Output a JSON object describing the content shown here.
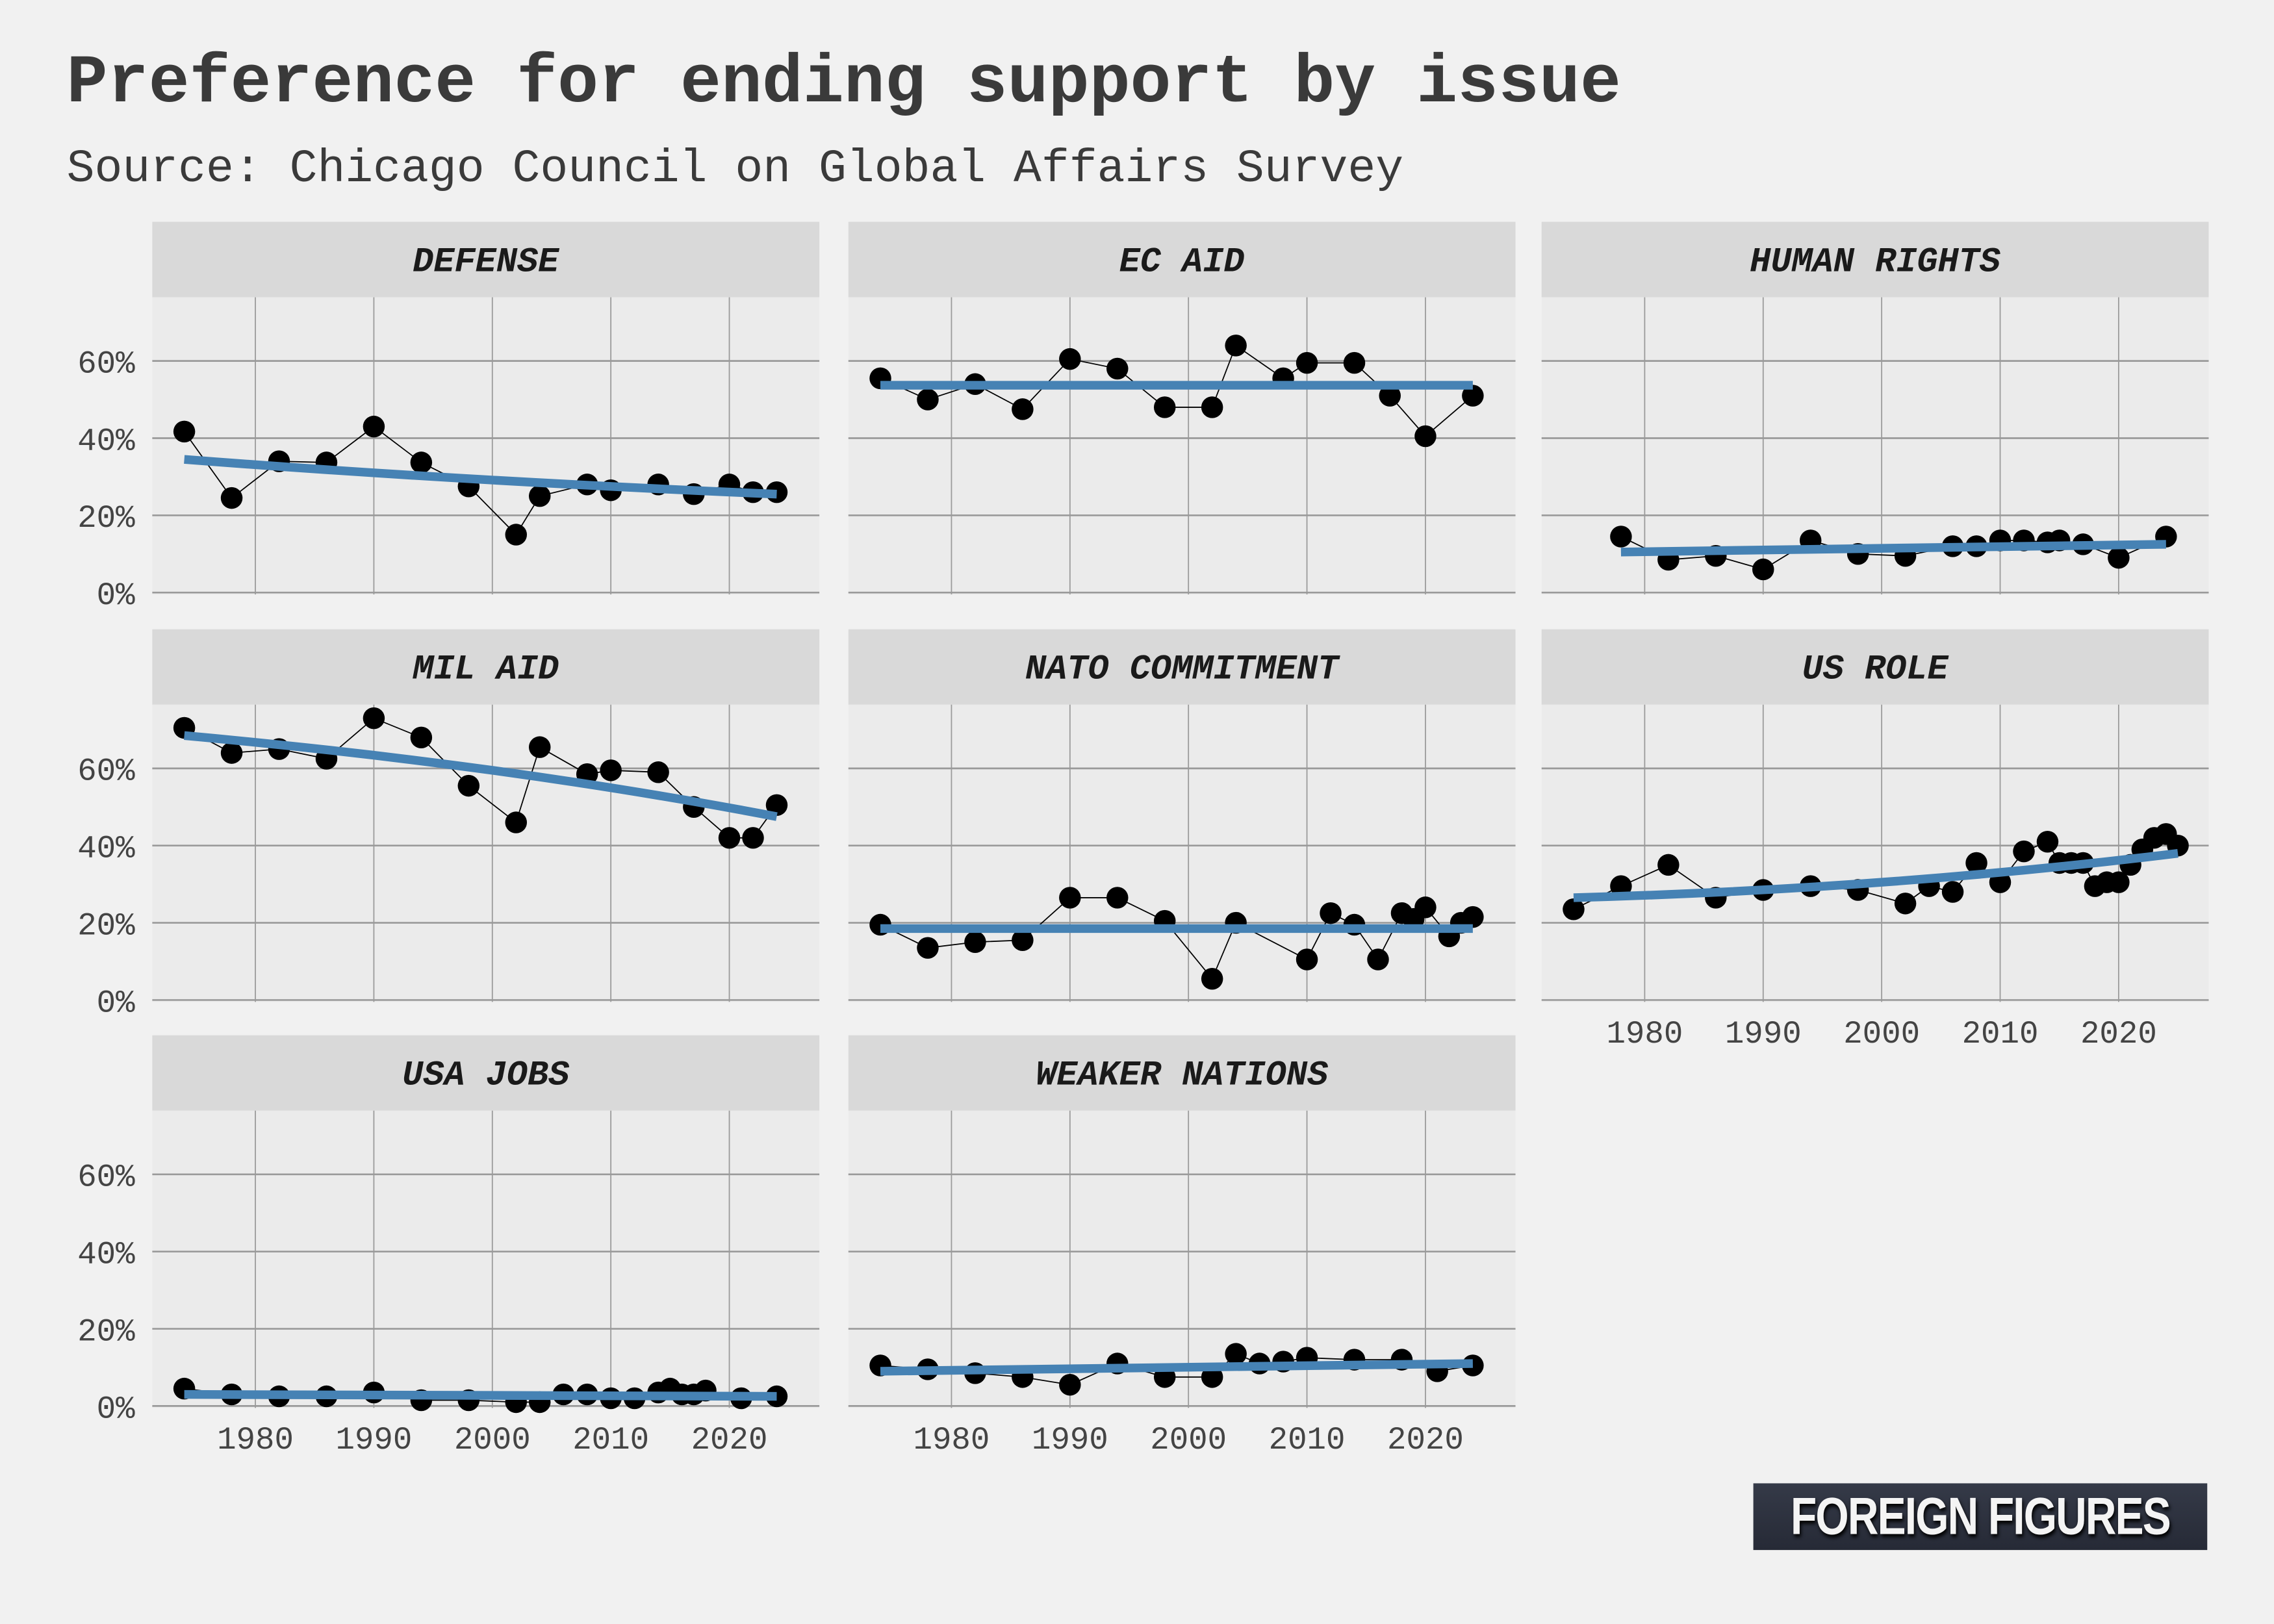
{
  "title": "Preference for ending support by issue",
  "subtitle": "Source: Chicago Council on Global Affairs Survey",
  "logo_text": "FOREIGN FIGURES",
  "colors": {
    "trend": "#4682b4",
    "points": "#000000",
    "panel_bg": "#ebebeb",
    "strip_bg": "#d9d9d9",
    "grid": "#9a9a9a"
  },
  "chart_data": {
    "type": "scatter",
    "facets": true,
    "xlim": [
      1971.3,
      2027.6
    ],
    "ylim": [
      -0.5,
      76.5
    ],
    "xticks": [
      1980,
      1990,
      2000,
      2010,
      2020
    ],
    "xtick_labels": [
      "1980",
      "1990",
      "2000",
      "2010",
      "2020"
    ],
    "yticks": [
      0,
      20,
      40,
      60
    ],
    "ytick_labels": [
      "0%",
      "20%",
      "40%",
      "60%"
    ],
    "grid": true,
    "panels": [
      {
        "name": "DEFENSE",
        "x": [
          1974,
          1978,
          1982,
          1986,
          1990,
          1994,
          1998,
          2002,
          2004,
          2008,
          2010,
          2014,
          2017,
          2020,
          2022,
          2024
        ],
        "y": [
          41.7,
          24.5,
          34,
          33.7,
          43,
          33.7,
          27.5,
          15,
          25,
          28,
          26.5,
          28,
          25.5,
          28,
          26,
          26
        ],
        "trend": [
          [
            1974,
            34.5
          ],
          [
            1998,
            29.5
          ],
          [
            2024,
            25.5
          ]
        ]
      },
      {
        "name": "EC AID",
        "x": [
          1974,
          1978,
          1982,
          1986,
          1990,
          1994,
          1998,
          2002,
          2004,
          2008,
          2010,
          2014,
          2017,
          2020,
          2024
        ],
        "y": [
          55.5,
          50,
          54,
          47.5,
          60.5,
          58,
          48,
          48,
          64,
          55.5,
          59.5,
          59.5,
          51,
          40.5,
          51
        ],
        "trend": [
          [
            1974,
            53.7
          ],
          [
            2024,
            53.7
          ]
        ]
      },
      {
        "name": "HUMAN RIGHTS",
        "x": [
          1978,
          1982,
          1986,
          1990,
          1994,
          1998,
          2002,
          2006,
          2008,
          2010,
          2012,
          2014,
          2015,
          2017,
          2020,
          2024
        ],
        "y": [
          14.5,
          8.5,
          9.5,
          6,
          13.5,
          10,
          9.5,
          12,
          12,
          13.5,
          13.5,
          13,
          13.5,
          12.5,
          9,
          14.5
        ],
        "trend": [
          [
            1978,
            10.5
          ],
          [
            2024,
            12.5
          ]
        ]
      },
      {
        "name": "MIL AID",
        "x": [
          1974,
          1978,
          1982,
          1986,
          1990,
          1994,
          1998,
          2002,
          2004,
          2008,
          2010,
          2014,
          2017,
          2020,
          2022,
          2024
        ],
        "y": [
          70.5,
          64,
          65,
          62.5,
          73,
          68,
          55.5,
          46,
          65.5,
          58.5,
          59.5,
          59,
          50,
          42,
          42,
          50.5
        ],
        "trend": [
          [
            1974,
            68.5
          ],
          [
            2000,
            59.5
          ],
          [
            2024,
            47.5
          ]
        ]
      },
      {
        "name": "NATO COMMITMENT",
        "x": [
          1974,
          1978,
          1982,
          1986,
          1990,
          1994,
          1998,
          2002,
          2004,
          2010,
          2012,
          2014,
          2016,
          2018,
          2019,
          2020,
          2022,
          2023,
          2024
        ],
        "y": [
          19.5,
          13.5,
          15,
          15.5,
          26.5,
          26.5,
          20.5,
          5.5,
          20,
          10.5,
          22.5,
          19.5,
          10.5,
          22.5,
          21,
          24,
          16.5,
          20,
          21.5
        ],
        "trend": [
          [
            1974,
            18.5
          ],
          [
            2024,
            18.5
          ]
        ]
      },
      {
        "name": "US ROLE",
        "x": [
          1974,
          1978,
          1982,
          1986,
          1990,
          1994,
          1998,
          2002,
          2004,
          2006,
          2008,
          2010,
          2012,
          2014,
          2015,
          2016,
          2017,
          2018,
          2019,
          2020,
          2021,
          2022,
          2023,
          2024,
          2025
        ],
        "y": [
          23.5,
          29.5,
          35,
          26.5,
          28.5,
          29.5,
          28.5,
          25,
          29.5,
          28,
          35.5,
          30.5,
          38.5,
          41,
          35.5,
          35.5,
          35.5,
          29.5,
          30.5,
          30.5,
          35,
          39,
          42,
          43,
          40
        ],
        "trend": [
          [
            1974,
            26.5
          ],
          [
            2000,
            30.5
          ],
          [
            2025,
            38
          ]
        ]
      },
      {
        "name": "USA JOBS",
        "x": [
          1974,
          1978,
          1982,
          1986,
          1990,
          1994,
          1998,
          2002,
          2004,
          2006,
          2008,
          2010,
          2012,
          2014,
          2015,
          2016,
          2017,
          2018,
          2021,
          2024
        ],
        "y": [
          4.5,
          3,
          2.5,
          2.5,
          3.5,
          1.5,
          1.5,
          1,
          1,
          3,
          3,
          2,
          2,
          3.5,
          4.5,
          3,
          3,
          4,
          2,
          2.5
        ],
        "trend": [
          [
            1974,
            3
          ],
          [
            2024,
            2.5
          ]
        ]
      },
      {
        "name": "WEAKER NATIONS",
        "x": [
          1974,
          1978,
          1982,
          1986,
          1990,
          1994,
          1998,
          2002,
          2004,
          2006,
          2008,
          2010,
          2014,
          2018,
          2021,
          2024
        ],
        "y": [
          10.5,
          9.5,
          8.5,
          7.5,
          5.5,
          11,
          7.5,
          7.5,
          13.5,
          11,
          11.5,
          12.5,
          12,
          12,
          9,
          10.5
        ],
        "trend": [
          [
            1974,
            9
          ],
          [
            2024,
            11
          ]
        ]
      }
    ]
  }
}
